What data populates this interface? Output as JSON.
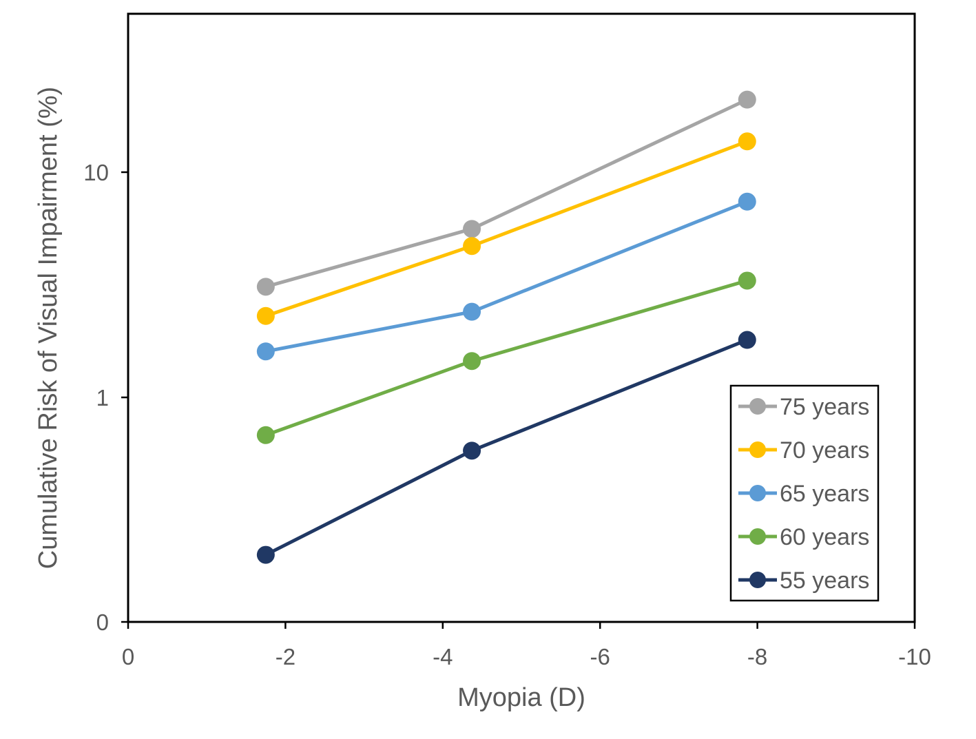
{
  "chart_data": {
    "type": "line",
    "title": "",
    "xlabel": "Myopia (D)",
    "ylabel": "Cumulative Risk of Visual Impairment (%)",
    "x_scale": "linear",
    "y_scale": "log",
    "xlim": [
      0,
      -10
    ],
    "ylim": [
      0.1,
      50
    ],
    "x_ticks": [
      0,
      -2,
      -4,
      -6,
      -8,
      -10
    ],
    "y_ticks": [
      {
        "value": 0.1,
        "label": "0"
      },
      {
        "value": 1,
        "label": "1"
      },
      {
        "value": 10,
        "label": "10"
      }
    ],
    "grid": false,
    "legend_position": "bottom-right",
    "x": [
      -1.75,
      -4.37,
      -7.87
    ],
    "series": [
      {
        "name": "75 years",
        "color": "#A5A5A5",
        "values": [
          3.1,
          5.6,
          21.0
        ]
      },
      {
        "name": "70 years",
        "color": "#FFC000",
        "values": [
          2.3,
          4.7,
          13.7
        ]
      },
      {
        "name": "65 years",
        "color": "#5B9BD5",
        "values": [
          1.6,
          2.4,
          7.4
        ]
      },
      {
        "name": "60 years",
        "color": "#70AD47",
        "values": [
          0.68,
          1.45,
          3.3
        ]
      },
      {
        "name": "55 years",
        "color": "#203864",
        "values": [
          0.2,
          0.58,
          1.8
        ]
      }
    ]
  }
}
